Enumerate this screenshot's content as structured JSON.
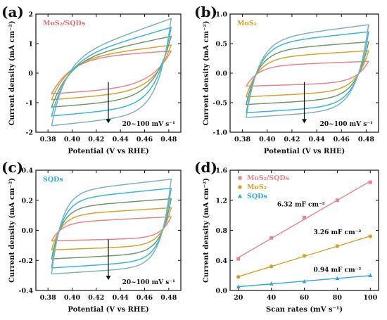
{
  "chart_data": [
    {
      "type": "line",
      "panel_label": "(a)",
      "title": "MoS₂/SQDs",
      "title_color": "#e07070",
      "xlabel": "Potential (V vs RHE)",
      "ylabel": "Current density (mA cm⁻²)",
      "xlim": [
        0.37,
        0.49
      ],
      "ylim": [
        -2,
        2
      ],
      "xticks": [
        "0.38",
        "0.40",
        "0.42",
        "0.44",
        "0.46",
        "0.48"
      ],
      "xtick_values": [
        0.38,
        0.4,
        0.42,
        0.44,
        0.46,
        0.48
      ],
      "yticks": [
        "-2",
        "-1",
        "0",
        "1",
        "2"
      ],
      "ytick_values": [
        -2,
        -1,
        0,
        1,
        2
      ],
      "annotation": "20~100 mV s⁻¹",
      "arrow": {
        "x": 0.43,
        "from": -0.3,
        "to": -1.7
      },
      "cv": {
        "x_start": 0.383,
        "x_end": 0.482,
        "loops": [
          {
            "color": "#e8858a",
            "upper_start": 0.52,
            "upper_end": 0.75,
            "lower_start": -0.7,
            "lower_end": -0.46,
            "sharp": 6
          },
          {
            "color": "#d6a52a",
            "upper_start": 0.45,
            "upper_end": 0.95,
            "lower_start": -0.9,
            "lower_end": -0.6,
            "sharp": 7
          },
          {
            "color": "#6e9a6a",
            "upper_start": 0.42,
            "upper_end": 1.25,
            "lower_start": -1.15,
            "lower_end": -0.85,
            "sharp": 7
          },
          {
            "color": "#37b6e0",
            "upper_start": 0.38,
            "upper_end": 1.55,
            "lower_start": -1.45,
            "lower_end": -1.1,
            "sharp": 8
          },
          {
            "color": "#7fb3b8",
            "upper_start": 0.4,
            "upper_end": 1.85,
            "lower_start": -1.78,
            "lower_end": -1.35,
            "sharp": 9
          }
        ]
      }
    },
    {
      "type": "line",
      "panel_label": "(b)",
      "title": "MoS₂",
      "title_color": "#d9a020",
      "xlabel": "Potential (V vs RHE)",
      "ylabel": "Current density (mA cm⁻²)",
      "xlim": [
        0.37,
        0.49
      ],
      "ylim": [
        -1,
        1
      ],
      "xticks": [
        "0.38",
        "0.40",
        "0.42",
        "0.44",
        "0.46",
        "0.48"
      ],
      "xtick_values": [
        0.38,
        0.4,
        0.42,
        0.44,
        0.46,
        0.48
      ],
      "yticks": [
        "-1.0",
        "-0.5",
        "0.0",
        "0.5",
        "1.0"
      ],
      "ytick_values": [
        -1,
        -0.5,
        0,
        0.5,
        1
      ],
      "annotation": "20~100 mV s⁻¹",
      "arrow": {
        "x": 0.43,
        "from": -0.15,
        "to": -0.85
      },
      "cv": {
        "x_start": 0.383,
        "x_end": 0.482,
        "loops": [
          {
            "color": "#e8858a",
            "upper_start": 0.12,
            "upper_end": 0.2,
            "lower_start": -0.22,
            "lower_end": -0.16,
            "sharp": 10
          },
          {
            "color": "#d6a52a",
            "upper_start": 0.25,
            "upper_end": 0.38,
            "lower_start": -0.4,
            "lower_end": -0.3,
            "sharp": 10
          },
          {
            "color": "#6e9a6a",
            "upper_start": 0.37,
            "upper_end": 0.53,
            "lower_start": -0.53,
            "lower_end": -0.42,
            "sharp": 10
          },
          {
            "color": "#37b6e0",
            "upper_start": 0.48,
            "upper_end": 0.7,
            "lower_start": -0.67,
            "lower_end": -0.54,
            "sharp": 10
          },
          {
            "color": "#7fb3b8",
            "upper_start": 0.55,
            "upper_end": 0.82,
            "lower_start": -0.75,
            "lower_end": -0.62,
            "sharp": 10
          }
        ]
      }
    },
    {
      "type": "line",
      "panel_label": "(c)",
      "title": "SQDs",
      "title_color": "#2ea8dc",
      "xlabel": "Potential (V vs RHE)",
      "ylabel": "Current density (mA cm⁻²)",
      "xlim": [
        0.37,
        0.49
      ],
      "ylim": [
        -0.4,
        0.4
      ],
      "xticks": [
        "0.38",
        "0.40",
        "0.42",
        "0.44",
        "0.46",
        "0.48"
      ],
      "xtick_values": [
        0.38,
        0.4,
        0.42,
        0.44,
        0.46,
        0.48
      ],
      "yticks": [
        "-0.4",
        "-0.2",
        "0.0",
        "0.2",
        "0.4"
      ],
      "ytick_values": [
        -0.4,
        -0.2,
        0,
        0.2,
        0.4
      ],
      "annotation": "20~100 mV s⁻¹",
      "arrow": {
        "x": 0.43,
        "from": -0.06,
        "to": -0.33
      },
      "cv": {
        "x_start": 0.383,
        "x_end": 0.482,
        "loops": [
          {
            "color": "#e8858a",
            "upper_start": 0.05,
            "upper_end": 0.09,
            "lower_start": -0.07,
            "lower_end": -0.05,
            "sharp": 12
          },
          {
            "color": "#d6a52a",
            "upper_start": 0.1,
            "upper_end": 0.15,
            "lower_start": -0.13,
            "lower_end": -0.1,
            "sharp": 12
          },
          {
            "color": "#6e9a6a",
            "upper_start": 0.15,
            "upper_end": 0.21,
            "lower_start": -0.19,
            "lower_end": -0.15,
            "sharp": 12
          },
          {
            "color": "#37b6e0",
            "upper_start": 0.2,
            "upper_end": 0.28,
            "lower_start": -0.25,
            "lower_end": -0.2,
            "sharp": 12
          },
          {
            "color": "#7fb3b8",
            "upper_start": 0.25,
            "upper_end": 0.34,
            "lower_start": -0.29,
            "lower_end": -0.24,
            "sharp": 12
          }
        ]
      }
    },
    {
      "type": "scatter",
      "panel_label": "(d)",
      "xlabel": "Scan rates (mV s⁻¹)",
      "ylabel": "Current density (mA cm⁻²)",
      "xlim": [
        15,
        105
      ],
      "ylim": [
        0,
        1.6
      ],
      "xticks": [
        "20",
        "40",
        "60",
        "80",
        "100"
      ],
      "xtick_values": [
        20,
        40,
        60,
        80,
        100
      ],
      "yticks": [
        "0.0",
        "0.4",
        "0.8",
        "1.2",
        "1.6"
      ],
      "ytick_values": [
        0,
        0.4,
        0.8,
        1.2,
        1.6
      ],
      "x": [
        20,
        40,
        60,
        80,
        100
      ],
      "legend_position": "top-left",
      "series": [
        {
          "name": "MoS₂/SQDs",
          "color": "#e8858a",
          "marker": "square",
          "values": [
            0.42,
            0.7,
            0.97,
            1.2,
            1.44
          ],
          "fit_label": "6.32 mF cm⁻²",
          "fit_label_color": "#e07070",
          "fit_label_pos": [
            58,
            1.12
          ]
        },
        {
          "name": "MoS₂",
          "color": "#d9a020",
          "marker": "circle",
          "values": [
            0.18,
            0.32,
            0.46,
            0.59,
            0.72
          ],
          "fit_label": "3.26 mF cm⁻²",
          "fit_label_color": "#d9a020",
          "fit_label_pos": [
            80,
            0.75
          ]
        },
        {
          "name": "SQDs",
          "color": "#2ea8dc",
          "marker": "triangle",
          "values": [
            0.05,
            0.09,
            0.12,
            0.16,
            0.2
          ],
          "fit_label": "0.94 mF cm⁻²",
          "fit_label_color": "#2ea8dc",
          "fit_label_pos": [
            80,
            0.25
          ]
        }
      ]
    }
  ]
}
